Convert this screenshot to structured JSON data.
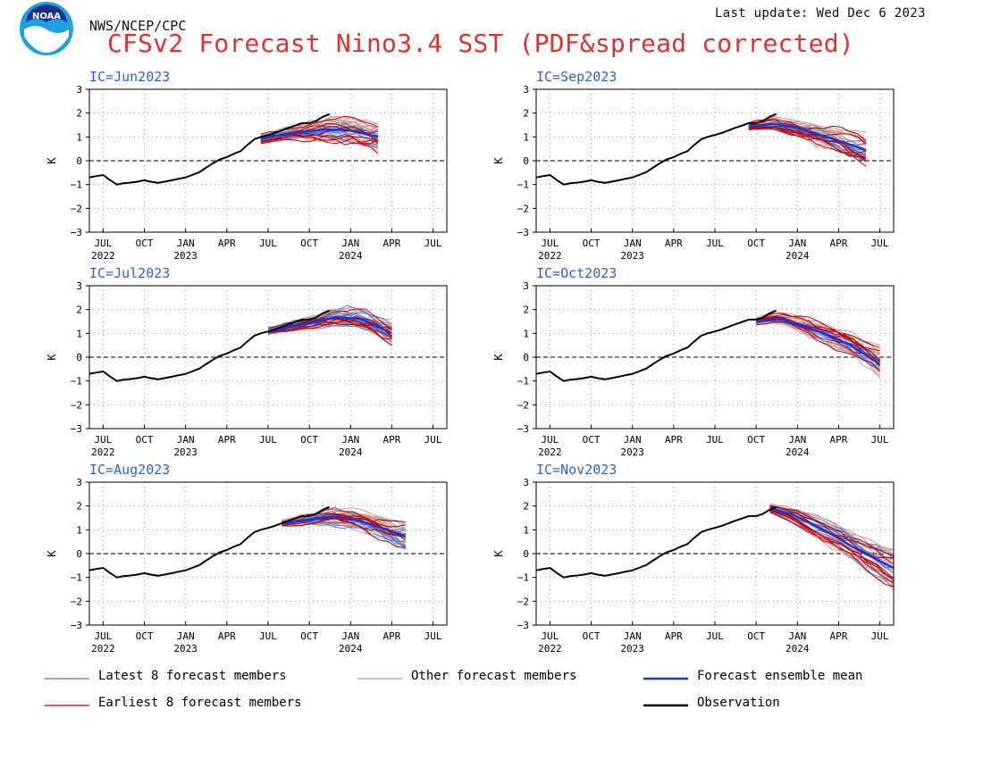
{
  "header": {
    "logo_text": "NOAA",
    "agency": "NWS/NCEP/CPC",
    "last_update": "Last update: Wed Dec 6 2023",
    "title": "CFSv2 Forecast Nino3.4 SST (PDF&spread corrected)"
  },
  "colors": {
    "observation": "#000000",
    "ensemble_mean": "#1a35d9",
    "latest8": "#3d78d8",
    "earliest8": "#c00000",
    "other": "#c89590",
    "title": "#e03030",
    "panel_label": "#3060d0"
  },
  "legend": [
    {
      "key": "latest8",
      "label": "Latest 8 forecast members"
    },
    {
      "key": "other",
      "label": "Other forecast members"
    },
    {
      "key": "ensemble_mean",
      "label": "Forecast ensemble mean"
    },
    {
      "key": "earliest8",
      "label": "Earliest 8 forecast members"
    },
    {
      "key": "observation",
      "label": "Observation"
    }
  ],
  "chart_data": {
    "type": "line",
    "ylabel": "K",
    "ylim": [
      -3,
      3
    ],
    "yticks": [
      -3,
      -2,
      -1,
      0,
      1,
      2,
      3
    ],
    "zero_line": "dashed",
    "grid": "dotted",
    "x_axis": {
      "start": "2022-06",
      "end": "2024-08",
      "tick_labels": [
        {
          "month": "2022-07",
          "label": "JUL",
          "year": "2022"
        },
        {
          "month": "2022-10",
          "label": "OCT",
          "year": ""
        },
        {
          "month": "2023-01",
          "label": "JAN",
          "year": "2023"
        },
        {
          "month": "2023-04",
          "label": "APR",
          "year": ""
        },
        {
          "month": "2023-07",
          "label": "JUL",
          "year": ""
        },
        {
          "month": "2023-10",
          "label": "OCT",
          "year": ""
        },
        {
          "month": "2024-01",
          "label": "JAN",
          "year": "2024"
        },
        {
          "month": "2024-04",
          "label": "APR",
          "year": ""
        },
        {
          "month": "2024-07",
          "label": "JUL",
          "year": ""
        }
      ]
    },
    "observation": [
      [
        "2022-06-01",
        -0.7
      ],
      [
        "2022-06-15",
        -0.65
      ],
      [
        "2022-07-01",
        -0.6
      ],
      [
        "2022-07-15",
        -0.8
      ],
      [
        "2022-08-01",
        -1.0
      ],
      [
        "2022-08-15",
        -0.95
      ],
      [
        "2022-09-01",
        -0.92
      ],
      [
        "2022-09-15",
        -0.88
      ],
      [
        "2022-10-01",
        -0.82
      ],
      [
        "2022-10-15",
        -0.88
      ],
      [
        "2022-11-01",
        -0.93
      ],
      [
        "2022-11-15",
        -0.88
      ],
      [
        "2022-12-01",
        -0.82
      ],
      [
        "2022-12-15",
        -0.76
      ],
      [
        "2023-01-01",
        -0.7
      ],
      [
        "2023-01-15",
        -0.6
      ],
      [
        "2023-02-01",
        -0.48
      ],
      [
        "2023-02-15",
        -0.3
      ],
      [
        "2023-03-01",
        -0.1
      ],
      [
        "2023-03-15",
        0.05
      ],
      [
        "2023-04-01",
        0.15
      ],
      [
        "2023-04-15",
        0.28
      ],
      [
        "2023-05-01",
        0.4
      ],
      [
        "2023-05-15",
        0.65
      ],
      [
        "2023-06-01",
        0.9
      ],
      [
        "2023-06-15",
        1.0
      ],
      [
        "2023-07-01",
        1.08
      ],
      [
        "2023-07-15",
        1.16
      ],
      [
        "2023-08-01",
        1.28
      ],
      [
        "2023-08-15",
        1.38
      ],
      [
        "2023-09-01",
        1.48
      ],
      [
        "2023-09-15",
        1.58
      ],
      [
        "2023-10-01",
        1.58
      ],
      [
        "2023-10-15",
        1.66
      ],
      [
        "2023-11-01",
        1.85
      ],
      [
        "2023-11-15",
        1.96
      ]
    ],
    "panels": [
      {
        "label": "IC=Jun2023",
        "ic": "2023-06",
        "fc_start": "2023-06-15",
        "fc_end": "2024-03-01",
        "mean": [
          [
            0,
            0.92
          ],
          [
            0.25,
            1.15
          ],
          [
            0.55,
            1.32
          ],
          [
            0.75,
            1.28
          ],
          [
            1,
            1.0
          ]
        ],
        "spread": 0.55
      },
      {
        "label": "IC=Sep2023",
        "ic": "2023-09",
        "fc_start": "2023-09-15",
        "fc_end": "2024-06-01",
        "mean": [
          [
            0,
            1.45
          ],
          [
            0.22,
            1.55
          ],
          [
            0.4,
            1.38
          ],
          [
            0.7,
            0.95
          ],
          [
            1,
            0.45
          ]
        ],
        "spread": 0.5
      },
      {
        "label": "IC=Jul2023",
        "ic": "2023-07",
        "fc_start": "2023-07-01",
        "fc_end": "2024-04-01",
        "mean": [
          [
            0,
            1.08
          ],
          [
            0.3,
            1.4
          ],
          [
            0.55,
            1.68
          ],
          [
            0.75,
            1.6
          ],
          [
            1,
            1.0
          ]
        ],
        "spread": 0.42
      },
      {
        "label": "IC=Oct2023",
        "ic": "2023-10",
        "fc_start": "2023-10-01",
        "fc_end": "2024-07-01",
        "mean": [
          [
            0,
            1.5
          ],
          [
            0.18,
            1.62
          ],
          [
            0.5,
            1.1
          ],
          [
            0.75,
            0.55
          ],
          [
            1,
            -0.3
          ]
        ],
        "spread": 0.55
      },
      {
        "label": "IC=Aug2023",
        "ic": "2023-08",
        "fc_start": "2023-08-01",
        "fc_end": "2024-05-01",
        "mean": [
          [
            0,
            1.28
          ],
          [
            0.4,
            1.55
          ],
          [
            0.62,
            1.4
          ],
          [
            0.82,
            1.05
          ],
          [
            1,
            0.72
          ]
        ],
        "spread": 0.45
      },
      {
        "label": "IC=Nov2023",
        "ic": "2023-11",
        "fc_start": "2023-11-01",
        "fc_end": "2024-08-01",
        "mean": [
          [
            0,
            1.9
          ],
          [
            0.2,
            1.6
          ],
          [
            0.45,
            0.95
          ],
          [
            0.75,
            0.05
          ],
          [
            1,
            -0.6
          ]
        ],
        "spread": 0.75
      }
    ]
  }
}
